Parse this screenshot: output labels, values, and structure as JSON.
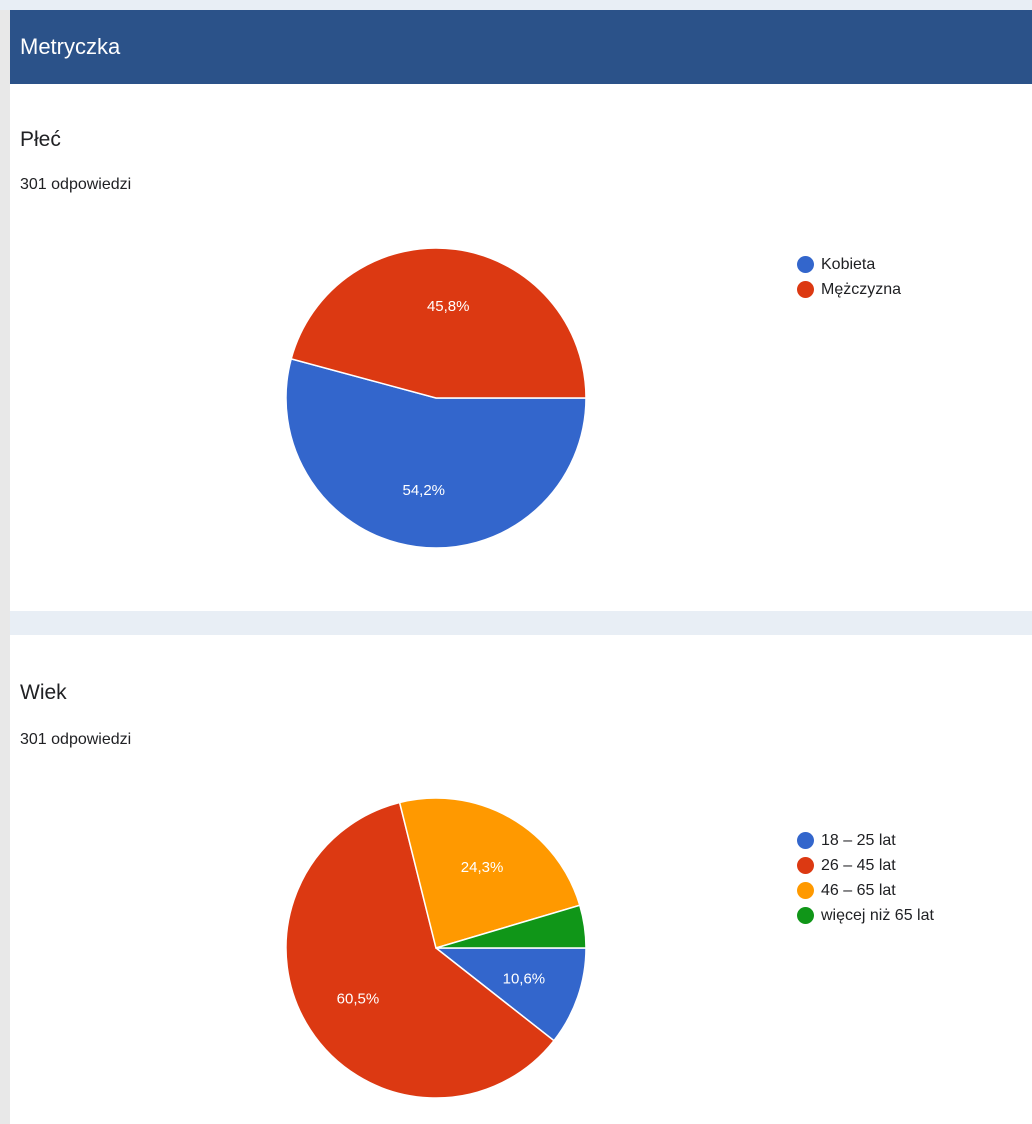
{
  "header": {
    "title": "Metryczka"
  },
  "colors": {
    "header_bg": "#2b5289",
    "blue": "#3366cc",
    "red": "#dc3912",
    "orange": "#ff9900",
    "green": "#109618"
  },
  "chart_data": [
    {
      "type": "pie",
      "title": "Płeć",
      "subtitle": "301 odpowiedzi",
      "legend_position": "right",
      "categories": [
        "Kobieta",
        "Mężczyzna"
      ],
      "values": [
        54.2,
        45.8
      ],
      "labels": [
        "54,2%",
        "45,8%"
      ],
      "colors": [
        "#3366cc",
        "#dc3912"
      ]
    },
    {
      "type": "pie",
      "title": "Wiek",
      "subtitle": "301 odpowiedzi",
      "legend_position": "right",
      "categories": [
        "18 – 25 lat",
        "26 – 45 lat",
        "46 – 65 lat",
        "więcej niż 65 lat"
      ],
      "values": [
        10.6,
        60.5,
        24.3,
        4.6
      ],
      "labels": [
        "10,6%",
        "60,5%",
        "24,3%",
        ""
      ],
      "colors": [
        "#3366cc",
        "#dc3912",
        "#ff9900",
        "#109618"
      ]
    }
  ]
}
